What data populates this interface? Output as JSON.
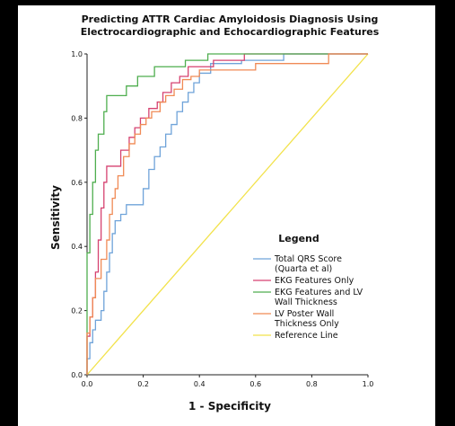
{
  "chart_data": {
    "type": "line",
    "title_lines": [
      "Predicting ATTR Cardiac Amyloidosis Diagnosis Using",
      "Electrocardiographic and Echocardiographic Features"
    ],
    "xlabel": "1 - Specificity",
    "ylabel": "Sensitivity",
    "xlim": [
      0,
      1
    ],
    "ylim": [
      0,
      1
    ],
    "x_ticks": [
      "0.0",
      "0.2",
      "0.4",
      "0.6",
      "0.8",
      "1.0"
    ],
    "y_ticks": [
      "0.0",
      "0.2",
      "0.4",
      "0.6",
      "0.8",
      "1.0"
    ],
    "grid": false,
    "legend": {
      "title": "Legend",
      "placement": "lower-right"
    },
    "series": [
      {
        "id": "qrs",
        "label_lines": [
          "Total QRS Score",
          "(Quarta et al)"
        ],
        "color": "#6fa3d9",
        "points": [
          [
            0,
            0
          ],
          [
            0,
            0.05
          ],
          [
            0.01,
            0.05
          ],
          [
            0.01,
            0.1
          ],
          [
            0.02,
            0.1
          ],
          [
            0.02,
            0.14
          ],
          [
            0.03,
            0.14
          ],
          [
            0.03,
            0.17
          ],
          [
            0.05,
            0.17
          ],
          [
            0.05,
            0.2
          ],
          [
            0.06,
            0.2
          ],
          [
            0.06,
            0.26
          ],
          [
            0.07,
            0.26
          ],
          [
            0.07,
            0.32
          ],
          [
            0.08,
            0.32
          ],
          [
            0.08,
            0.38
          ],
          [
            0.09,
            0.38
          ],
          [
            0.09,
            0.44
          ],
          [
            0.1,
            0.44
          ],
          [
            0.1,
            0.48
          ],
          [
            0.12,
            0.48
          ],
          [
            0.12,
            0.5
          ],
          [
            0.14,
            0.5
          ],
          [
            0.14,
            0.53
          ],
          [
            0.2,
            0.53
          ],
          [
            0.2,
            0.58
          ],
          [
            0.22,
            0.58
          ],
          [
            0.22,
            0.64
          ],
          [
            0.24,
            0.64
          ],
          [
            0.24,
            0.68
          ],
          [
            0.26,
            0.68
          ],
          [
            0.26,
            0.71
          ],
          [
            0.28,
            0.71
          ],
          [
            0.28,
            0.75
          ],
          [
            0.3,
            0.75
          ],
          [
            0.3,
            0.78
          ],
          [
            0.32,
            0.78
          ],
          [
            0.32,
            0.82
          ],
          [
            0.34,
            0.82
          ],
          [
            0.34,
            0.85
          ],
          [
            0.36,
            0.85
          ],
          [
            0.36,
            0.88
          ],
          [
            0.38,
            0.88
          ],
          [
            0.38,
            0.91
          ],
          [
            0.4,
            0.91
          ],
          [
            0.4,
            0.94
          ],
          [
            0.44,
            0.94
          ],
          [
            0.44,
            0.97
          ],
          [
            0.55,
            0.97
          ],
          [
            0.55,
            0.98
          ],
          [
            0.7,
            0.98
          ],
          [
            0.7,
            1.0
          ],
          [
            1.0,
            1.0
          ]
        ]
      },
      {
        "id": "ekg",
        "label_lines": [
          "EKG Features Only"
        ],
        "color": "#d64270",
        "points": [
          [
            0,
            0
          ],
          [
            0,
            0.12
          ],
          [
            0.01,
            0.12
          ],
          [
            0.01,
            0.18
          ],
          [
            0.02,
            0.18
          ],
          [
            0.02,
            0.24
          ],
          [
            0.03,
            0.24
          ],
          [
            0.03,
            0.32
          ],
          [
            0.04,
            0.32
          ],
          [
            0.04,
            0.42
          ],
          [
            0.05,
            0.42
          ],
          [
            0.05,
            0.52
          ],
          [
            0.06,
            0.52
          ],
          [
            0.06,
            0.6
          ],
          [
            0.07,
            0.6
          ],
          [
            0.07,
            0.65
          ],
          [
            0.12,
            0.65
          ],
          [
            0.12,
            0.7
          ],
          [
            0.15,
            0.7
          ],
          [
            0.15,
            0.74
          ],
          [
            0.17,
            0.74
          ],
          [
            0.17,
            0.77
          ],
          [
            0.19,
            0.77
          ],
          [
            0.19,
            0.8
          ],
          [
            0.22,
            0.8
          ],
          [
            0.22,
            0.83
          ],
          [
            0.25,
            0.83
          ],
          [
            0.25,
            0.85
          ],
          [
            0.27,
            0.85
          ],
          [
            0.27,
            0.88
          ],
          [
            0.3,
            0.88
          ],
          [
            0.3,
            0.91
          ],
          [
            0.33,
            0.91
          ],
          [
            0.33,
            0.93
          ],
          [
            0.36,
            0.93
          ],
          [
            0.36,
            0.96
          ],
          [
            0.45,
            0.96
          ],
          [
            0.45,
            0.98
          ],
          [
            0.56,
            0.98
          ],
          [
            0.56,
            1.0
          ],
          [
            1.0,
            1.0
          ]
        ]
      },
      {
        "id": "ekg_lv",
        "label_lines": [
          "EKG Features and LV",
          "Wall Thickness"
        ],
        "color": "#4fae4f",
        "points": [
          [
            0,
            0
          ],
          [
            0,
            0.38
          ],
          [
            0.01,
            0.38
          ],
          [
            0.01,
            0.5
          ],
          [
            0.02,
            0.5
          ],
          [
            0.02,
            0.6
          ],
          [
            0.03,
            0.6
          ],
          [
            0.03,
            0.7
          ],
          [
            0.04,
            0.7
          ],
          [
            0.04,
            0.75
          ],
          [
            0.06,
            0.75
          ],
          [
            0.06,
            0.82
          ],
          [
            0.07,
            0.82
          ],
          [
            0.07,
            0.87
          ],
          [
            0.14,
            0.87
          ],
          [
            0.14,
            0.9
          ],
          [
            0.18,
            0.9
          ],
          [
            0.18,
            0.93
          ],
          [
            0.24,
            0.93
          ],
          [
            0.24,
            0.96
          ],
          [
            0.35,
            0.96
          ],
          [
            0.35,
            0.98
          ],
          [
            0.43,
            0.98
          ],
          [
            0.43,
            1.0
          ],
          [
            1.0,
            1.0
          ]
        ]
      },
      {
        "id": "lv",
        "label_lines": [
          "LV Poster Wall",
          "Thickness Only"
        ],
        "color": "#f08a55",
        "points": [
          [
            0,
            0
          ],
          [
            0,
            0.13
          ],
          [
            0.01,
            0.13
          ],
          [
            0.01,
            0.18
          ],
          [
            0.02,
            0.18
          ],
          [
            0.02,
            0.24
          ],
          [
            0.03,
            0.24
          ],
          [
            0.03,
            0.3
          ],
          [
            0.05,
            0.3
          ],
          [
            0.05,
            0.36
          ],
          [
            0.07,
            0.36
          ],
          [
            0.07,
            0.42
          ],
          [
            0.08,
            0.42
          ],
          [
            0.08,
            0.5
          ],
          [
            0.09,
            0.5
          ],
          [
            0.09,
            0.55
          ],
          [
            0.1,
            0.55
          ],
          [
            0.1,
            0.58
          ],
          [
            0.11,
            0.58
          ],
          [
            0.11,
            0.62
          ],
          [
            0.13,
            0.62
          ],
          [
            0.13,
            0.68
          ],
          [
            0.15,
            0.68
          ],
          [
            0.15,
            0.72
          ],
          [
            0.17,
            0.72
          ],
          [
            0.17,
            0.75
          ],
          [
            0.19,
            0.75
          ],
          [
            0.19,
            0.78
          ],
          [
            0.21,
            0.78
          ],
          [
            0.21,
            0.8
          ],
          [
            0.23,
            0.8
          ],
          [
            0.23,
            0.82
          ],
          [
            0.26,
            0.82
          ],
          [
            0.26,
            0.85
          ],
          [
            0.28,
            0.85
          ],
          [
            0.28,
            0.87
          ],
          [
            0.31,
            0.87
          ],
          [
            0.31,
            0.89
          ],
          [
            0.34,
            0.89
          ],
          [
            0.34,
            0.92
          ],
          [
            0.37,
            0.92
          ],
          [
            0.37,
            0.93
          ],
          [
            0.4,
            0.93
          ],
          [
            0.4,
            0.95
          ],
          [
            0.6,
            0.95
          ],
          [
            0.6,
            0.97
          ],
          [
            0.86,
            0.97
          ],
          [
            0.86,
            1.0
          ],
          [
            1.0,
            1.0
          ]
        ]
      },
      {
        "id": "reference",
        "label_lines": [
          "Reference Line"
        ],
        "color": "#f2e24a",
        "points": [
          [
            0,
            0
          ],
          [
            1,
            1
          ]
        ]
      }
    ]
  },
  "colors": {
    "outer_background": "#000000",
    "panel_background": "#ffffff",
    "axis": "#222222"
  }
}
